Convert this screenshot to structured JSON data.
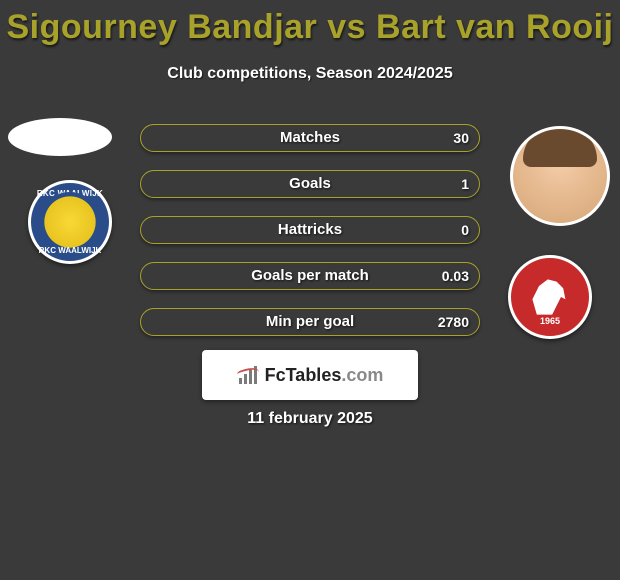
{
  "title": {
    "player1": "Sigourney Bandjar",
    "vs": "vs",
    "player2": "Bart van Rooij",
    "color": "#a8a22a"
  },
  "subtitle": "Club competitions, Season 2024/2025",
  "background_color": "#3a3a3a",
  "text_color": "#ffffff",
  "accent_color": "#a8a22a",
  "stats": [
    {
      "label": "Matches",
      "value": "30",
      "fill_pct": 0
    },
    {
      "label": "Goals",
      "value": "1",
      "fill_pct": 0
    },
    {
      "label": "Hattricks",
      "value": "0",
      "fill_pct": 0
    },
    {
      "label": "Goals per match",
      "value": "0.03",
      "fill_pct": 0
    },
    {
      "label": "Min per goal",
      "value": "2780",
      "fill_pct": 0
    }
  ],
  "stat_style": {
    "border_color": "#a8a22a",
    "fill_color": "#a8a22a",
    "height": 28,
    "radius": 14
  },
  "badges": {
    "left": {
      "name": "RKC WAALWIJK",
      "primary": "#2a4d8a",
      "secondary": "#f9d835"
    },
    "right": {
      "name": "FC Twente",
      "year": "1965",
      "primary": "#c62a2a",
      "secondary": "#ffffff"
    }
  },
  "logo": {
    "text_main": "FcTables",
    "text_suffix": ".com"
  },
  "date": "11 february 2025"
}
